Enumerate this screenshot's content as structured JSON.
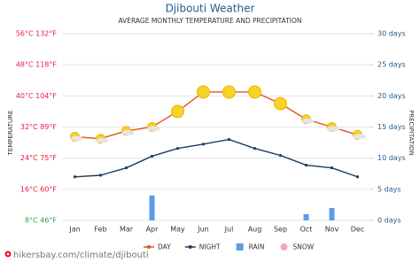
{
  "chart_data": {
    "type": "line",
    "title": "Djibouti Weather",
    "subtitle": "AVERAGE MONTHLY TEMPERATURE AND PRECIPITATION",
    "y_label": "TEMPERATURE",
    "y2_label": "PRECIPITATION",
    "source": "hikersbay.com/climate/djibouti",
    "categories": [
      "Jan",
      "Feb",
      "Mar",
      "Apr",
      "May",
      "Jun",
      "Jul",
      "Aug",
      "Sep",
      "Oct",
      "Nov",
      "Dec"
    ],
    "ylim": [
      8,
      56
    ],
    "yticks": [
      {
        "value": 56,
        "label": "56°C 132°F"
      },
      {
        "value": 48,
        "label": "48°C 118°F"
      },
      {
        "value": 40,
        "label": "40°C 104°F"
      },
      {
        "value": 32,
        "label": "32°C 89°F"
      },
      {
        "value": 24,
        "label": "24°C 75°F"
      },
      {
        "value": 16,
        "label": "16°C 60°F"
      },
      {
        "value": 8,
        "label": "8°C 46°F"
      }
    ],
    "ytick_colors": [
      "#e8173a",
      "#e8176e",
      "#e8177e",
      "#e8174f",
      "#e8173a",
      "#e8173a",
      "#2e9e3a"
    ],
    "y2lim": [
      0,
      30
    ],
    "y2ticks": [
      {
        "value": 30,
        "label": "30 days"
      },
      {
        "value": 25,
        "label": "25 days"
      },
      {
        "value": 20,
        "label": "20 days"
      },
      {
        "value": 15,
        "label": "15 days"
      },
      {
        "value": 10,
        "label": "10 days"
      },
      {
        "value": 5,
        "label": "5 days"
      },
      {
        "value": 0,
        "label": "0 days"
      }
    ],
    "grid": true,
    "series": [
      {
        "name": "DAY",
        "color": "#e2541c",
        "legend_marker": "line",
        "values": [
          29.5,
          29,
          31,
          32,
          36,
          41,
          41,
          41,
          38,
          34,
          32,
          30
        ]
      },
      {
        "name": "NIGHT",
        "color": "#1d3d5e",
        "legend_marker": "line",
        "values": [
          19.2,
          19.6,
          21.5,
          24.5,
          26.5,
          27.6,
          28.8,
          26.5,
          24.7,
          22.2,
          21.5,
          19.2
        ]
      },
      {
        "name": "RAIN",
        "color": "#5b9be8",
        "legend_marker": "square",
        "axis": "y2",
        "values": [
          0,
          0,
          0,
          4,
          0,
          0,
          0,
          0,
          0,
          1,
          2,
          0
        ]
      },
      {
        "name": "SNOW",
        "color": "#f4a6bd",
        "legend_marker": "circle",
        "axis": "y2",
        "values": [
          0,
          0,
          0,
          0,
          0,
          0,
          0,
          0,
          0,
          0,
          0,
          0
        ]
      }
    ]
  }
}
